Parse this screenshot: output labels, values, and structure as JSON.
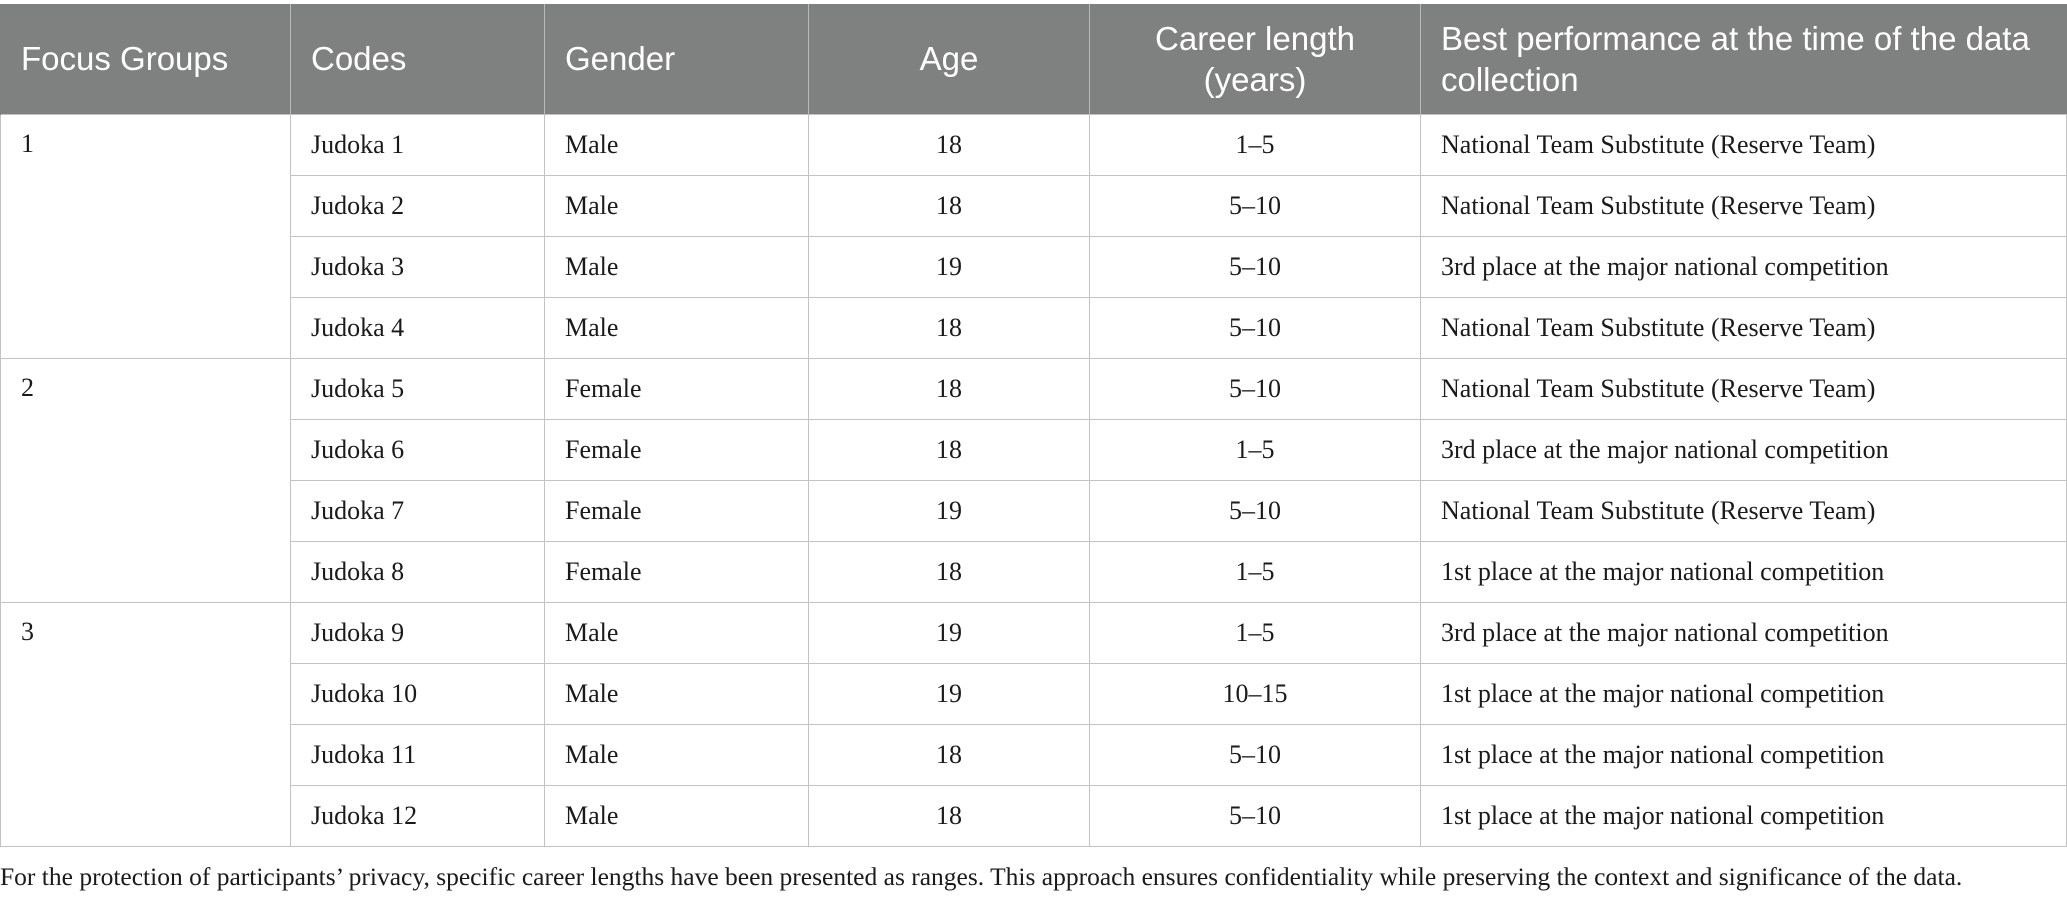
{
  "table": {
    "headers": [
      "Focus Groups",
      "Codes",
      "Gender",
      "Age",
      "Career length (years)",
      "Best performance at the time of the data collection"
    ],
    "groups": [
      {
        "label": "1",
        "rows": [
          {
            "code": "Judoka 1",
            "gender": "Male",
            "age": "18",
            "career": "1–5",
            "performance": "National Team Substitute (Reserve Team)"
          },
          {
            "code": "Judoka 2",
            "gender": "Male",
            "age": "18",
            "career": "5–10",
            "performance": "National Team Substitute (Reserve Team)"
          },
          {
            "code": "Judoka 3",
            "gender": "Male",
            "age": "19",
            "career": "5–10",
            "performance": "3rd place at the major national competition"
          },
          {
            "code": "Judoka 4",
            "gender": "Male",
            "age": "18",
            "career": "5–10",
            "performance": "National Team Substitute (Reserve Team)"
          }
        ]
      },
      {
        "label": "2",
        "rows": [
          {
            "code": "Judoka 5",
            "gender": "Female",
            "age": "18",
            "career": "5–10",
            "performance": "National Team Substitute (Reserve Team)"
          },
          {
            "code": "Judoka 6",
            "gender": "Female",
            "age": "18",
            "career": "1–5",
            "performance": "3rd place at the major national competition"
          },
          {
            "code": "Judoka 7",
            "gender": "Female",
            "age": "19",
            "career": "5–10",
            "performance": "National Team Substitute (Reserve Team)"
          },
          {
            "code": "Judoka 8",
            "gender": "Female",
            "age": "18",
            "career": "1–5",
            "performance": "1st place at the major national competition"
          }
        ]
      },
      {
        "label": "3",
        "rows": [
          {
            "code": "Judoka 9",
            "gender": "Male",
            "age": "19",
            "career": "1–5",
            "performance": "3rd place at the major national competition"
          },
          {
            "code": "Judoka 10",
            "gender": "Male",
            "age": "19",
            "career": "10–15",
            "performance": "1st place at the major national competition"
          },
          {
            "code": "Judoka 11",
            "gender": "Male",
            "age": "18",
            "career": "5–10",
            "performance": "1st place at the major national competition"
          },
          {
            "code": "Judoka 12",
            "gender": "Male",
            "age": "18",
            "career": "5–10",
            "performance": "1st place at the major national competition"
          }
        ]
      }
    ]
  },
  "footnote": "For the protection of participants’ privacy, specific career lengths have been presented as ranges. This approach ensures confidentiality while preserving the context and significance of the data.",
  "colors": {
    "header_background": "#7f8180",
    "header_text": "#ffffff",
    "grid_lines": "#c3c3c3",
    "body_text": "#1a1a1a"
  }
}
